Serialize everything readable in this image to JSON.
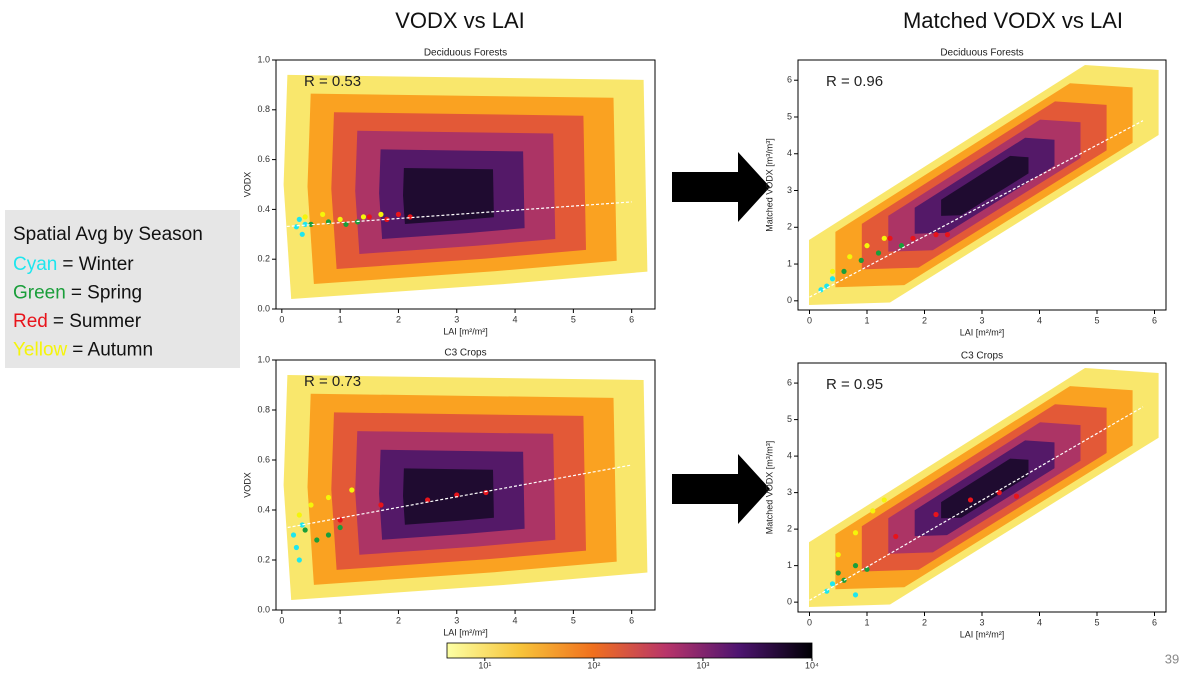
{
  "slide": {
    "headers": [
      "VODX vs LAI",
      "Matched VODX vs LAI"
    ],
    "legend": {
      "title": "Spatial Avg by Season",
      "items": [
        {
          "label": "Cyan",
          "text": "= Winter",
          "color": "#1ee6ee"
        },
        {
          "label": "Green",
          "text": "= Spring",
          "color": "#1a9e3a"
        },
        {
          "label": "Red",
          "text": "= Summer",
          "color": "#e8141b"
        },
        {
          "label": "Yellow",
          "text": "= Autumn",
          "color": "#f5f50a"
        }
      ]
    },
    "page_number": "39"
  },
  "chart_data": [
    {
      "type": "scatter",
      "title": "Deciduous Forests",
      "annotation": "R = 0.53",
      "xlabel": "LAI [m²/m²]",
      "ylabel": "VODX",
      "xlim": [
        -0.1,
        6.4
      ],
      "ylim": [
        0,
        1.0
      ],
      "xticks": [
        0,
        1,
        2,
        3,
        4,
        5,
        6
      ],
      "yticks": [
        {
          "value": 0,
          "label": "0.0"
        },
        0.2,
        0.4,
        0.6,
        0.8,
        {
          "value": 1,
          "label": "1.0"
        }
      ],
      "series": [
        {
          "color": "#1ee6ee",
          "x": [
            0.25,
            0.3,
            0.35,
            0.4
          ],
          "values": [
            0.33,
            0.36,
            0.3,
            0.34
          ]
        },
        {
          "color": "#1a9e3a",
          "x": [
            0.5,
            0.8,
            1.1,
            1.3
          ],
          "values": [
            0.34,
            0.35,
            0.34,
            0.35
          ]
        },
        {
          "color": "#e8141b",
          "x": [
            1.5,
            1.8,
            2.0,
            2.2
          ],
          "values": [
            0.37,
            0.36,
            0.38,
            0.37
          ]
        },
        {
          "color": "#f5f50a",
          "x": [
            0.4,
            0.7,
            1.0,
            1.4,
            1.7
          ],
          "values": [
            0.37,
            0.38,
            0.36,
            0.37,
            0.38
          ]
        }
      ],
      "fit": {
        "color": "#ffffff",
        "x": [
          0,
          6
        ],
        "values": [
          0.33,
          0.43
        ]
      }
    },
    {
      "type": "scatter",
      "title": "Deciduous Forests",
      "annotation": "R = 0.96",
      "xlabel": "LAI [m²/m²]",
      "ylabel": "Matched VODX [m³/m³]",
      "xlim": [
        -0.2,
        6.2
      ],
      "ylim": [
        -0.25,
        6.55
      ],
      "xticks": [
        0,
        1,
        2,
        3,
        4,
        5,
        6
      ],
      "yticks": [
        0,
        1,
        2,
        3,
        4,
        5,
        6
      ],
      "series": [
        {
          "color": "#1ee6ee",
          "x": [
            0.2,
            0.3,
            0.4
          ],
          "values": [
            0.3,
            0.4,
            0.6
          ]
        },
        {
          "color": "#1a9e3a",
          "x": [
            0.6,
            0.9,
            1.2,
            1.6
          ],
          "values": [
            0.8,
            1.1,
            1.3,
            1.5
          ]
        },
        {
          "color": "#e8141b",
          "x": [
            1.4,
            1.8,
            2.2,
            2.4
          ],
          "values": [
            1.7,
            1.7,
            1.8,
            1.8
          ]
        },
        {
          "color": "#f5f50a",
          "x": [
            0.4,
            0.7,
            1.0,
            1.3
          ],
          "values": [
            0.8,
            1.2,
            1.5,
            1.7
          ]
        }
      ],
      "fit": {
        "color": "#ffffff",
        "x": [
          0,
          5.8
        ],
        "values": [
          0.1,
          4.9
        ]
      }
    },
    {
      "type": "scatter",
      "title": "C3 Crops",
      "annotation": "R = 0.73",
      "xlabel": "LAI [m²/m²]",
      "ylabel": "VODX",
      "xlim": [
        -0.1,
        6.4
      ],
      "ylim": [
        0,
        1.0
      ],
      "xticks": [
        0,
        1,
        2,
        3,
        4,
        5,
        6
      ],
      "yticks": [
        {
          "value": 0,
          "label": "0.0"
        },
        0.2,
        0.4,
        0.6,
        0.8,
        {
          "value": 1,
          "label": "1.0"
        }
      ],
      "series": [
        {
          "color": "#1ee6ee",
          "x": [
            0.2,
            0.25,
            0.3,
            0.35
          ],
          "values": [
            0.3,
            0.25,
            0.2,
            0.34
          ]
        },
        {
          "color": "#1a9e3a",
          "x": [
            0.4,
            0.6,
            0.8,
            1.0
          ],
          "values": [
            0.32,
            0.28,
            0.3,
            0.33
          ]
        },
        {
          "color": "#e8141b",
          "x": [
            1.0,
            1.7,
            2.5,
            3.0,
            3.5
          ],
          "values": [
            0.36,
            0.42,
            0.44,
            0.46,
            0.47
          ]
        },
        {
          "color": "#f5f50a",
          "x": [
            0.3,
            0.5,
            0.8,
            1.2
          ],
          "values": [
            0.38,
            0.42,
            0.45,
            0.48
          ]
        }
      ],
      "fit": {
        "color": "#ffffff",
        "x": [
          0.1,
          6
        ],
        "values": [
          0.33,
          0.58
        ]
      }
    },
    {
      "type": "scatter",
      "title": "C3 Crops",
      "annotation": "R = 0.95",
      "xlabel": "LAI [m²/m²]",
      "ylabel": "Matched VODX [m³/m³]",
      "xlim": [
        -0.2,
        6.2
      ],
      "ylim": [
        -0.27,
        6.55
      ],
      "xticks": [
        0,
        1,
        2,
        3,
        4,
        5,
        6
      ],
      "yticks": [
        0,
        1,
        2,
        3,
        4,
        5,
        6
      ],
      "series": [
        {
          "color": "#1ee6ee",
          "x": [
            0.3,
            0.4,
            0.8
          ],
          "values": [
            0.3,
            0.5,
            0.2
          ]
        },
        {
          "color": "#1a9e3a",
          "x": [
            0.5,
            0.6,
            0.8,
            1.0
          ],
          "values": [
            0.8,
            0.6,
            1.0,
            0.9
          ]
        },
        {
          "color": "#e8141b",
          "x": [
            1.5,
            2.2,
            2.8,
            3.3,
            3.6
          ],
          "values": [
            1.8,
            2.4,
            2.8,
            3.0,
            2.9
          ]
        },
        {
          "color": "#f5f50a",
          "x": [
            0.5,
            0.8,
            1.1,
            1.3
          ],
          "values": [
            1.3,
            1.9,
            2.5,
            2.8
          ]
        }
      ],
      "fit": {
        "color": "#ffffff",
        "x": [
          0,
          5.8
        ],
        "values": [
          0.05,
          5.35
        ]
      }
    },
    {
      "type": "colorbar",
      "log": true,
      "xlim": [
        4.5,
        10000
      ],
      "xticks": [
        {
          "value": 10,
          "label": "10¹"
        },
        {
          "value": 100,
          "label": "10²"
        },
        {
          "value": 1000,
          "label": "10³"
        },
        {
          "value": 10000,
          "label": "10⁴"
        }
      ]
    }
  ]
}
